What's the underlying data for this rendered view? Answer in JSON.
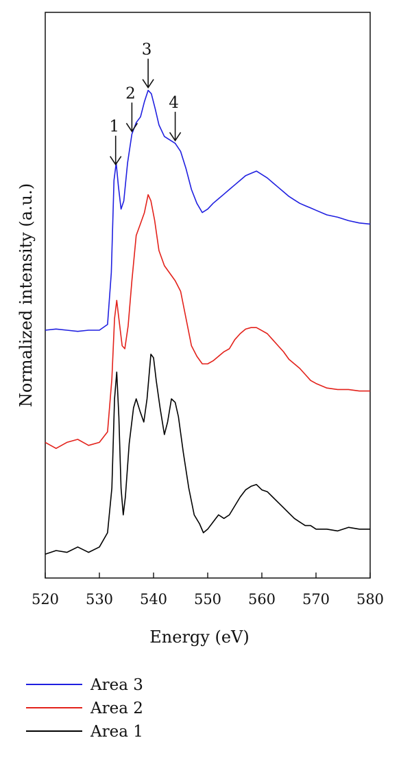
{
  "chart_data": {
    "type": "line",
    "xlabel": "Energy (eV)",
    "ylabel": "Normalized intensity (a.u.)",
    "xlim": [
      520,
      580
    ],
    "xticks": [
      520,
      530,
      540,
      550,
      560,
      570,
      580
    ],
    "y_tick_labels": false,
    "grid": false,
    "legend_position": "bottom",
    "annotations": [
      {
        "label": "1",
        "x": 533.0,
        "series": "Area 3"
      },
      {
        "label": "2",
        "x": 536.0,
        "series": "Area 3"
      },
      {
        "label": "3",
        "x": 539.0,
        "series": "Area 3"
      },
      {
        "label": "4",
        "x": 544.0,
        "series": "Area 3"
      }
    ],
    "series": [
      {
        "name": "Area 1",
        "color": "#000000",
        "points": [
          [
            520,
            -0.02
          ],
          [
            522,
            0.0
          ],
          [
            524,
            -0.01
          ],
          [
            526,
            0.02
          ],
          [
            528,
            -0.01
          ],
          [
            530,
            0.02
          ],
          [
            531.5,
            0.1
          ],
          [
            532.3,
            0.35
          ],
          [
            532.8,
            0.85
          ],
          [
            533.2,
            1.0
          ],
          [
            533.6,
            0.75
          ],
          [
            534.0,
            0.35
          ],
          [
            534.4,
            0.2
          ],
          [
            534.8,
            0.3
          ],
          [
            535.5,
            0.6
          ],
          [
            536.3,
            0.8
          ],
          [
            536.8,
            0.85
          ],
          [
            537.5,
            0.78
          ],
          [
            538.2,
            0.72
          ],
          [
            538.8,
            0.85
          ],
          [
            539.5,
            1.1
          ],
          [
            540.0,
            1.08
          ],
          [
            540.5,
            0.95
          ],
          [
            541.2,
            0.8
          ],
          [
            542.0,
            0.65
          ],
          [
            542.6,
            0.72
          ],
          [
            543.3,
            0.85
          ],
          [
            544.0,
            0.83
          ],
          [
            544.6,
            0.75
          ],
          [
            545.5,
            0.55
          ],
          [
            546.5,
            0.35
          ],
          [
            547.5,
            0.2
          ],
          [
            548.5,
            0.15
          ],
          [
            549.2,
            0.1
          ],
          [
            550.0,
            0.12
          ],
          [
            551.0,
            0.16
          ],
          [
            552.0,
            0.2
          ],
          [
            553.0,
            0.18
          ],
          [
            554.0,
            0.2
          ],
          [
            555.0,
            0.25
          ],
          [
            556.0,
            0.3
          ],
          [
            557.0,
            0.34
          ],
          [
            558.0,
            0.36
          ],
          [
            559.0,
            0.37
          ],
          [
            560.0,
            0.34
          ],
          [
            561.0,
            0.33
          ],
          [
            562.0,
            0.3
          ],
          [
            563.0,
            0.27
          ],
          [
            564.0,
            0.24
          ],
          [
            565.0,
            0.21
          ],
          [
            566.0,
            0.18
          ],
          [
            567.0,
            0.16
          ],
          [
            568.0,
            0.14
          ],
          [
            569.0,
            0.14
          ],
          [
            570.0,
            0.12
          ],
          [
            572.0,
            0.12
          ],
          [
            574.0,
            0.11
          ],
          [
            576.0,
            0.13
          ],
          [
            578.0,
            0.12
          ],
          [
            580.0,
            0.12
          ]
        ]
      },
      {
        "name": "Area 2",
        "color": "#e3211a",
        "points": [
          [
            520,
            -0.02
          ],
          [
            522,
            -0.06
          ],
          [
            524,
            -0.02
          ],
          [
            526,
            0.0
          ],
          [
            528,
            -0.04
          ],
          [
            530,
            -0.02
          ],
          [
            531.5,
            0.05
          ],
          [
            532.3,
            0.4
          ],
          [
            532.8,
            0.8
          ],
          [
            533.2,
            0.92
          ],
          [
            533.6,
            0.8
          ],
          [
            534.2,
            0.62
          ],
          [
            534.7,
            0.6
          ],
          [
            535.3,
            0.75
          ],
          [
            536.0,
            1.05
          ],
          [
            536.8,
            1.35
          ],
          [
            537.5,
            1.42
          ],
          [
            538.3,
            1.5
          ],
          [
            539.0,
            1.62
          ],
          [
            539.5,
            1.58
          ],
          [
            540.2,
            1.45
          ],
          [
            541.0,
            1.25
          ],
          [
            542.0,
            1.15
          ],
          [
            543.0,
            1.1
          ],
          [
            544.0,
            1.05
          ],
          [
            545.0,
            0.98
          ],
          [
            546.0,
            0.8
          ],
          [
            547.0,
            0.62
          ],
          [
            548.0,
            0.55
          ],
          [
            549.0,
            0.5
          ],
          [
            550.0,
            0.5
          ],
          [
            551.0,
            0.52
          ],
          [
            552.0,
            0.55
          ],
          [
            553.0,
            0.58
          ],
          [
            554.0,
            0.6
          ],
          [
            555.0,
            0.66
          ],
          [
            556.0,
            0.7
          ],
          [
            557.0,
            0.73
          ],
          [
            558.0,
            0.74
          ],
          [
            559.0,
            0.74
          ],
          [
            560.0,
            0.72
          ],
          [
            561.0,
            0.7
          ],
          [
            562.0,
            0.66
          ],
          [
            563.0,
            0.62
          ],
          [
            564.0,
            0.58
          ],
          [
            565.0,
            0.53
          ],
          [
            566.0,
            0.5
          ],
          [
            567.0,
            0.47
          ],
          [
            568.0,
            0.43
          ],
          [
            569.0,
            0.39
          ],
          [
            570.0,
            0.37
          ],
          [
            572.0,
            0.34
          ],
          [
            574.0,
            0.33
          ],
          [
            576.0,
            0.33
          ],
          [
            578.0,
            0.32
          ],
          [
            580.0,
            0.32
          ]
        ]
      },
      {
        "name": "Area 3",
        "color": "#1f1fe0",
        "points": [
          [
            520,
            0.0
          ],
          [
            522,
            0.01
          ],
          [
            524,
            0.0
          ],
          [
            526,
            -0.01
          ],
          [
            528,
            0.0
          ],
          [
            530,
            0.0
          ],
          [
            531.5,
            0.05
          ],
          [
            532.2,
            0.5
          ],
          [
            532.7,
            1.3
          ],
          [
            533.1,
            1.45
          ],
          [
            533.5,
            1.25
          ],
          [
            534.0,
            1.05
          ],
          [
            534.5,
            1.12
          ],
          [
            535.2,
            1.45
          ],
          [
            536.0,
            1.7
          ],
          [
            536.8,
            1.8
          ],
          [
            537.6,
            1.85
          ],
          [
            538.3,
            1.98
          ],
          [
            539.0,
            2.08
          ],
          [
            539.6,
            2.05
          ],
          [
            540.3,
            1.92
          ],
          [
            541.0,
            1.78
          ],
          [
            542.0,
            1.68
          ],
          [
            543.0,
            1.65
          ],
          [
            544.0,
            1.62
          ],
          [
            545.0,
            1.55
          ],
          [
            546.0,
            1.4
          ],
          [
            547.0,
            1.22
          ],
          [
            548.0,
            1.1
          ],
          [
            549.0,
            1.02
          ],
          [
            550.0,
            1.05
          ],
          [
            551.0,
            1.1
          ],
          [
            552.0,
            1.14
          ],
          [
            553.0,
            1.18
          ],
          [
            554.0,
            1.22
          ],
          [
            555.0,
            1.26
          ],
          [
            556.0,
            1.3
          ],
          [
            557.0,
            1.34
          ],
          [
            558.0,
            1.36
          ],
          [
            559.0,
            1.38
          ],
          [
            560.0,
            1.35
          ],
          [
            561.0,
            1.32
          ],
          [
            562.0,
            1.28
          ],
          [
            563.0,
            1.24
          ],
          [
            564.0,
            1.2
          ],
          [
            565.0,
            1.16
          ],
          [
            566.0,
            1.13
          ],
          [
            567.0,
            1.1
          ],
          [
            568.0,
            1.08
          ],
          [
            569.0,
            1.06
          ],
          [
            570.0,
            1.04
          ],
          [
            572.0,
            1.0
          ],
          [
            574.0,
            0.98
          ],
          [
            576.0,
            0.95
          ],
          [
            578.0,
            0.93
          ],
          [
            580.0,
            0.92
          ]
        ]
      }
    ]
  }
}
